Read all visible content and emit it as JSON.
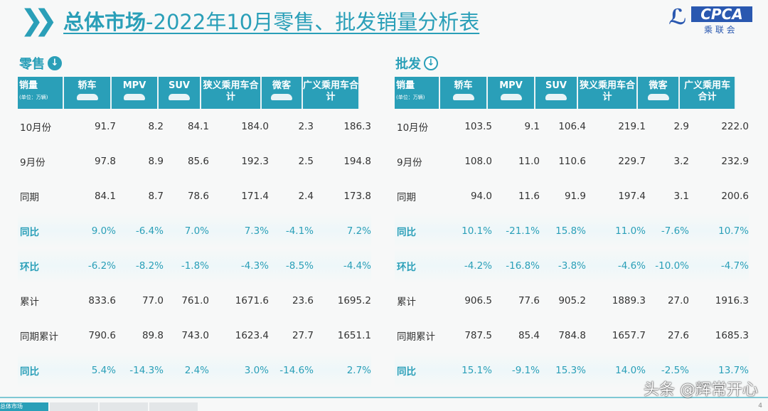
{
  "title": {
    "bold": "总体市场",
    "rest": "-2022年10月零售、批发销量分析表"
  },
  "logo": {
    "text": "CPCA",
    "cn": "乘联会"
  },
  "headers": {
    "label": "销量",
    "unit": "(单位：万辆)",
    "cols": [
      "轿车",
      "MPV",
      "SUV",
      "狭义乘用车合计",
      "微客",
      "广义乘用车合计"
    ]
  },
  "colors": {
    "accent": "#2a9fb8"
  },
  "retail": {
    "title": "零售",
    "rows": [
      {
        "label": "10月份",
        "values": [
          "91.7",
          "8.2",
          "84.1",
          "184.0",
          "2.3",
          "186.3"
        ]
      },
      {
        "label": "9月份",
        "values": [
          "97.8",
          "8.9",
          "85.6",
          "192.3",
          "2.5",
          "194.8"
        ]
      },
      {
        "label": "同期",
        "values": [
          "84.1",
          "8.7",
          "78.6",
          "171.4",
          "2.4",
          "173.8"
        ]
      },
      {
        "label": "同比",
        "values": [
          "9.0%",
          "-6.4%",
          "7.0%",
          "7.3%",
          "-4.1%",
          "7.2%"
        ],
        "highlight": true
      },
      {
        "label": "环比",
        "values": [
          "-6.2%",
          "-8.2%",
          "-1.8%",
          "-4.3%",
          "-8.5%",
          "-4.4%"
        ],
        "highlight": true
      },
      {
        "label": "累计",
        "values": [
          "833.6",
          "77.0",
          "761.0",
          "1671.6",
          "23.6",
          "1695.2"
        ]
      },
      {
        "label": "同期累计",
        "values": [
          "790.6",
          "89.8",
          "743.0",
          "1623.4",
          "27.7",
          "1651.1"
        ]
      },
      {
        "label": "同比",
        "values": [
          "5.4%",
          "-14.3%",
          "2.4%",
          "3.0%",
          "-14.6%",
          "2.7%"
        ],
        "highlight": true
      }
    ]
  },
  "wholesale": {
    "title": "批发",
    "rows": [
      {
        "label": "10月份",
        "values": [
          "103.5",
          "9.1",
          "106.4",
          "219.1",
          "2.9",
          "222.0"
        ]
      },
      {
        "label": "9月份",
        "values": [
          "108.0",
          "11.0",
          "110.6",
          "229.7",
          "3.2",
          "232.9"
        ]
      },
      {
        "label": "同期",
        "values": [
          "94.0",
          "11.6",
          "91.9",
          "197.4",
          "3.1",
          "200.6"
        ]
      },
      {
        "label": "同比",
        "values": [
          "10.1%",
          "-21.1%",
          "15.8%",
          "11.0%",
          "-7.6%",
          "10.7%"
        ],
        "highlight": true
      },
      {
        "label": "环比",
        "values": [
          "-4.2%",
          "-16.8%",
          "-3.8%",
          "-4.6%",
          "-10.0%",
          "-4.7%"
        ],
        "highlight": true
      },
      {
        "label": "累计",
        "values": [
          "906.5",
          "77.6",
          "905.2",
          "1889.3",
          "27.0",
          "1916.3"
        ]
      },
      {
        "label": "同期累计",
        "values": [
          "787.5",
          "85.4",
          "784.8",
          "1657.7",
          "27.6",
          "1685.3"
        ]
      },
      {
        "label": "同比",
        "values": [
          "15.1%",
          "-9.1%",
          "15.3%",
          "14.0%",
          "-2.5%",
          "13.7%"
        ],
        "highlight": true
      }
    ]
  },
  "footer": {
    "tab1": "总体市场",
    "page": "4"
  },
  "watermark": "头条 @辉常开心"
}
